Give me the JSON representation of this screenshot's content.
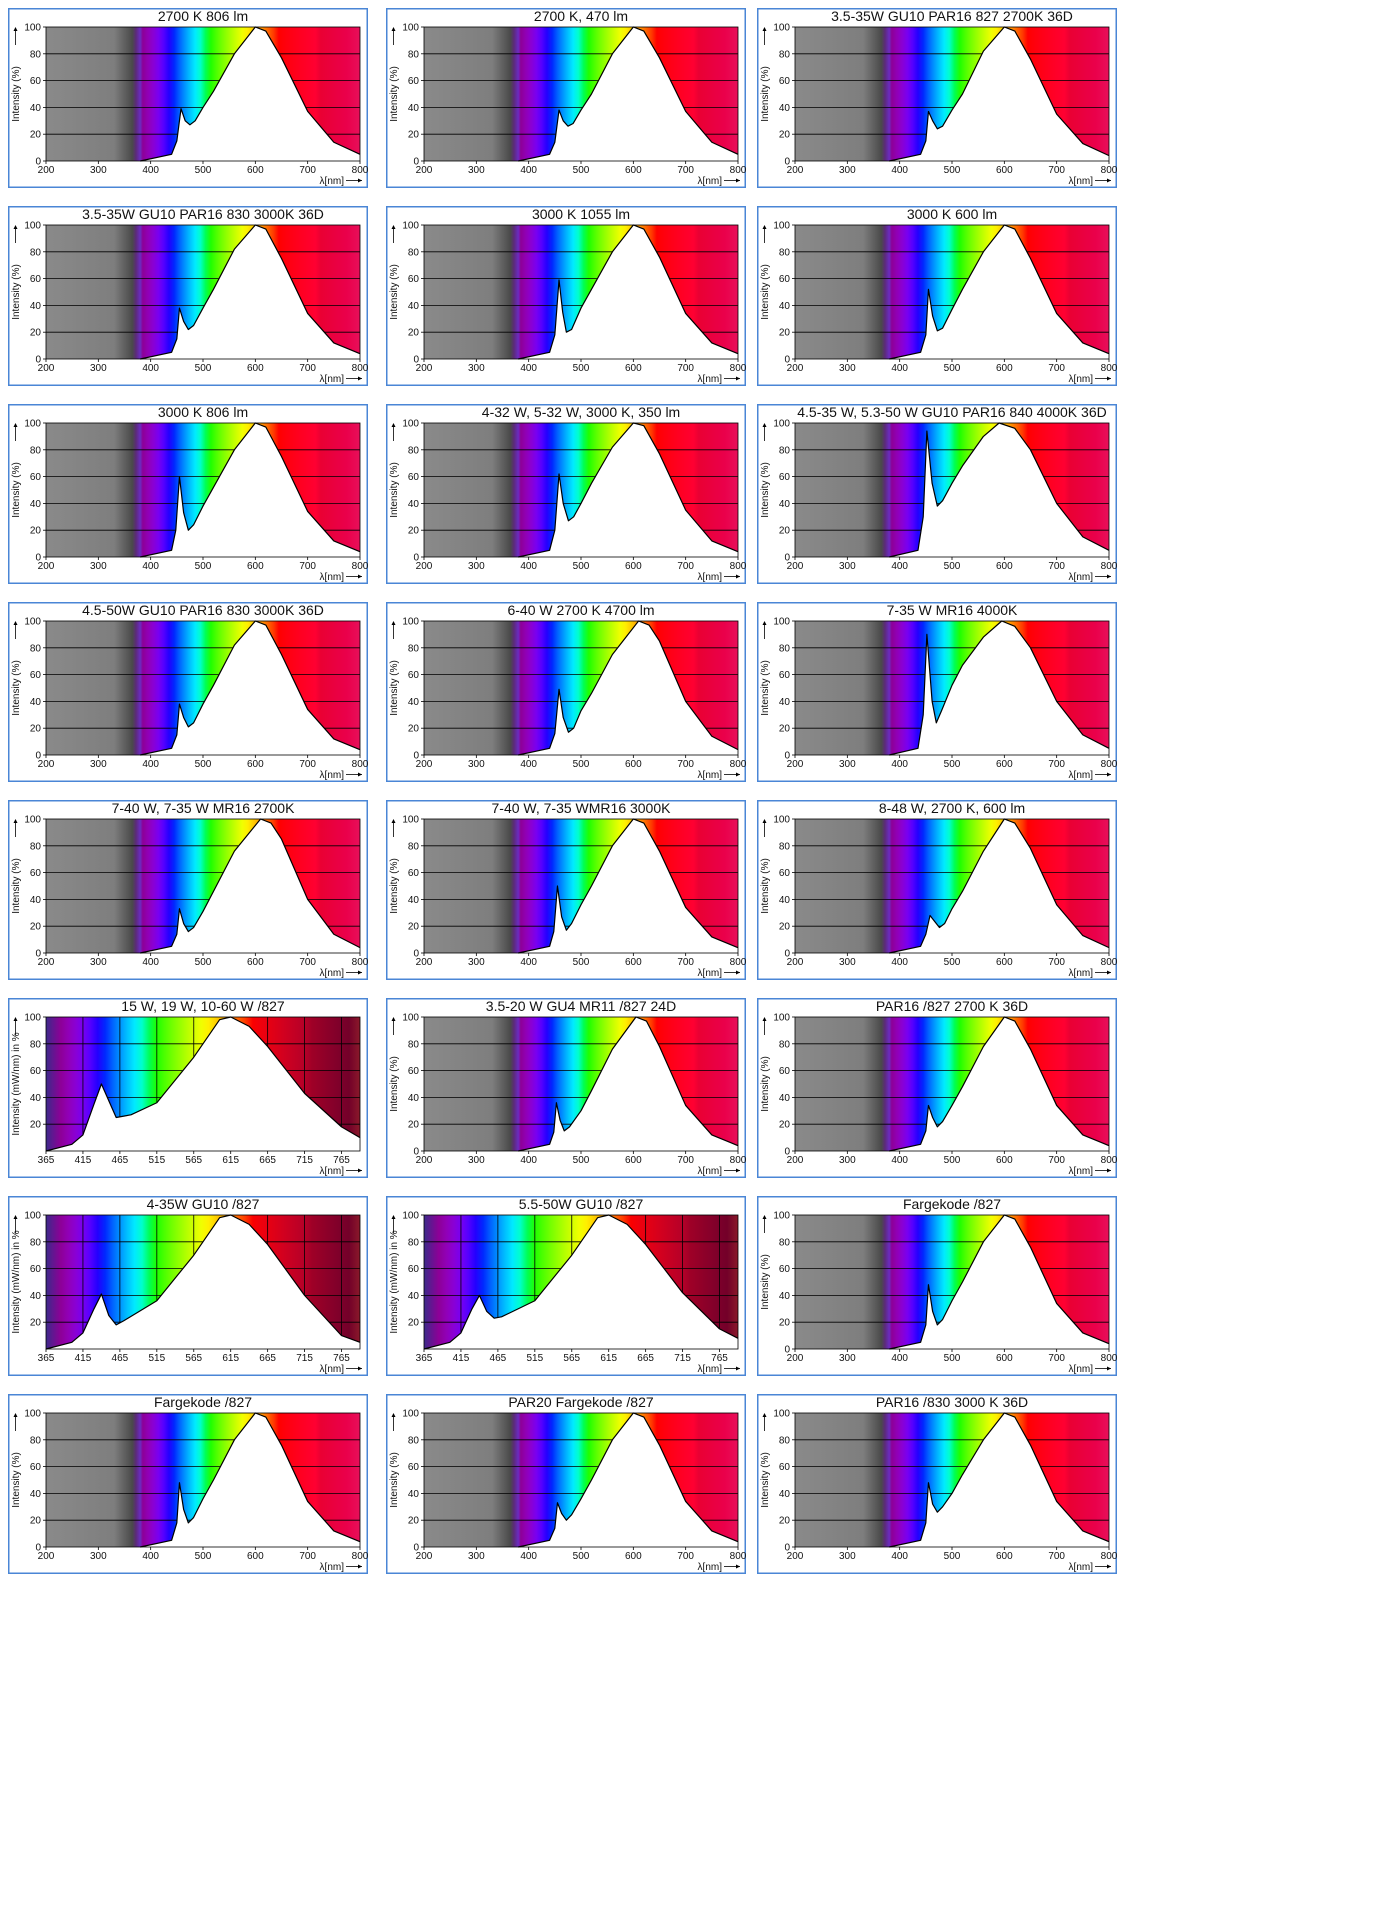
{
  "defaults": {
    "ylabel": "Intensity (%)",
    "xlabel": "λ[nm]",
    "xlim": [
      200,
      800
    ],
    "ylim": [
      0,
      100
    ],
    "xticks": [
      200,
      300,
      400,
      500,
      600,
      700,
      800
    ],
    "yticks": [
      0,
      20,
      40,
      60,
      80,
      100
    ],
    "background": "grey-to-visible-spectrum"
  },
  "alt_axis": {
    "ylabel": "Intensity (mW/nm) in %",
    "xlabel": "λ[nm]",
    "xlim": [
      365,
      790
    ],
    "ylim": [
      0,
      100
    ],
    "xticks": [
      365,
      415,
      465,
      515,
      565,
      615,
      665,
      715,
      765
    ],
    "yticks": [
      20,
      40,
      60,
      80,
      100
    ],
    "background": "spectrum-with-grid"
  },
  "colors": {
    "frame_border": "#4a86d6",
    "curve": "#000000",
    "grid": "#000000",
    "uv_grey": "#6e6e6e"
  },
  "chart_data": [
    {
      "type": "area",
      "title": "2700 K 806 lm",
      "x": [
        380,
        440,
        450,
        458,
        466,
        475,
        485,
        500,
        520,
        560,
        600,
        620,
        650,
        700,
        750,
        800
      ],
      "y": [
        0,
        5,
        15,
        39,
        30,
        27,
        30,
        40,
        52,
        80,
        100,
        97,
        77,
        37,
        14,
        5
      ]
    },
    {
      "type": "area",
      "title": "2700 K, 470 lm",
      "x": [
        380,
        440,
        450,
        458,
        466,
        475,
        485,
        500,
        520,
        560,
        600,
        620,
        650,
        700,
        750,
        800
      ],
      "y": [
        0,
        5,
        14,
        38,
        30,
        26,
        28,
        38,
        50,
        80,
        100,
        97,
        77,
        37,
        14,
        5
      ]
    },
    {
      "type": "area",
      "title": "3.5-35W GU10 PAR16 827 2700K 36D",
      "x": [
        380,
        440,
        450,
        455,
        463,
        472,
        482,
        500,
        520,
        560,
        600,
        620,
        650,
        700,
        750,
        800
      ],
      "y": [
        0,
        5,
        15,
        37,
        30,
        24,
        26,
        38,
        50,
        82,
        100,
        97,
        76,
        35,
        13,
        4
      ]
    },
    {
      "type": "area",
      "title": "3.5-35W GU10 PAR16 830 3000K 36D",
      "x": [
        380,
        440,
        450,
        455,
        463,
        472,
        482,
        500,
        520,
        560,
        600,
        620,
        650,
        700,
        750,
        800
      ],
      "y": [
        0,
        5,
        15,
        38,
        28,
        22,
        25,
        38,
        52,
        82,
        100,
        97,
        75,
        34,
        12,
        4
      ]
    },
    {
      "type": "area",
      "title": "3000 K 1055 lm",
      "x": [
        380,
        440,
        450,
        458,
        465,
        472,
        482,
        500,
        520,
        560,
        600,
        620,
        650,
        700,
        750,
        800
      ],
      "y": [
        0,
        5,
        18,
        59,
        35,
        20,
        22,
        38,
        52,
        80,
        100,
        97,
        76,
        34,
        12,
        4
      ]
    },
    {
      "type": "area",
      "title": "3000 K 600 lm",
      "x": [
        380,
        440,
        450,
        455,
        463,
        472,
        482,
        500,
        520,
        560,
        600,
        620,
        650,
        700,
        750,
        800
      ],
      "y": [
        0,
        5,
        18,
        52,
        32,
        21,
        23,
        37,
        52,
        80,
        100,
        97,
        75,
        34,
        12,
        4
      ]
    },
    {
      "type": "area",
      "title": "3000 K 806 lm",
      "x": [
        380,
        440,
        448,
        455,
        463,
        472,
        482,
        500,
        520,
        560,
        600,
        620,
        650,
        700,
        750,
        800
      ],
      "y": [
        0,
        5,
        20,
        60,
        33,
        20,
        24,
        38,
        52,
        80,
        100,
        97,
        75,
        34,
        12,
        4
      ]
    },
    {
      "type": "area",
      "title": "4-32 W, 5-32 W, 3000 K, 350 lm",
      "x": [
        380,
        440,
        450,
        458,
        466,
        476,
        486,
        500,
        520,
        560,
        600,
        620,
        650,
        700,
        750,
        800
      ],
      "y": [
        0,
        5,
        20,
        62,
        40,
        27,
        30,
        40,
        55,
        82,
        100,
        98,
        77,
        35,
        12,
        4
      ]
    },
    {
      "type": "area",
      "title": "4.5-35 W, 5.3-50 W GU10 PAR16 840 4000K 36D",
      "x": [
        380,
        435,
        445,
        452,
        462,
        472,
        482,
        500,
        520,
        560,
        590,
        620,
        650,
        700,
        750,
        800
      ],
      "y": [
        0,
        5,
        30,
        94,
        55,
        38,
        42,
        55,
        68,
        90,
        100,
        96,
        80,
        40,
        15,
        5
      ]
    },
    {
      "type": "area",
      "title": "4.5-50W GU10 PAR16 830 3000K 36D",
      "x": [
        380,
        440,
        450,
        455,
        463,
        472,
        482,
        500,
        520,
        560,
        600,
        620,
        650,
        700,
        750,
        800
      ],
      "y": [
        0,
        5,
        15,
        38,
        28,
        21,
        24,
        38,
        52,
        82,
        100,
        97,
        75,
        34,
        12,
        4
      ]
    },
    {
      "type": "area",
      "title": "6-40 W 2700 K 4700 lm",
      "x": [
        380,
        440,
        450,
        458,
        466,
        476,
        486,
        500,
        520,
        560,
        610,
        630,
        650,
        700,
        750,
        800
      ],
      "y": [
        0,
        5,
        16,
        49,
        28,
        17,
        20,
        33,
        46,
        75,
        100,
        97,
        85,
        40,
        14,
        4
      ]
    },
    {
      "type": "area",
      "title": "7-35 W MR16 4000K",
      "x": [
        380,
        435,
        445,
        452,
        462,
        470,
        480,
        500,
        520,
        560,
        595,
        620,
        650,
        700,
        750,
        800
      ],
      "y": [
        0,
        5,
        30,
        90,
        40,
        24,
        33,
        52,
        67,
        88,
        100,
        96,
        80,
        40,
        15,
        5
      ]
    },
    {
      "type": "area",
      "title": "7-40 W, 7-35 W MR16 2700K",
      "x": [
        380,
        440,
        450,
        455,
        463,
        472,
        482,
        500,
        520,
        560,
        610,
        630,
        650,
        700,
        750,
        800
      ],
      "y": [
        0,
        5,
        14,
        33,
        22,
        16,
        19,
        31,
        46,
        76,
        100,
        97,
        85,
        40,
        14,
        4
      ]
    },
    {
      "type": "area",
      "title": "7-40 W, 7-35 WMR16 3000K",
      "x": [
        380,
        440,
        448,
        455,
        463,
        472,
        482,
        500,
        520,
        560,
        600,
        620,
        650,
        700,
        750,
        800
      ],
      "y": [
        0,
        5,
        16,
        50,
        27,
        17,
        22,
        36,
        50,
        80,
        100,
        97,
        76,
        34,
        12,
        4
      ]
    },
    {
      "type": "area",
      "title": "8-48 W, 2700 K, 600 lm",
      "x": [
        380,
        440,
        450,
        458,
        466,
        476,
        486,
        500,
        520,
        560,
        600,
        620,
        650,
        700,
        750,
        800
      ],
      "y": [
        0,
        5,
        14,
        28,
        24,
        19,
        22,
        33,
        46,
        76,
        100,
        97,
        78,
        36,
        13,
        4
      ]
    },
    {
      "type": "area",
      "title": "15 W, 19 W, 10-60 W /827",
      "x": [
        365,
        400,
        415,
        430,
        440,
        448,
        460,
        480,
        515,
        565,
        600,
        615,
        640,
        665,
        715,
        765,
        790
      ],
      "y": [
        0,
        5,
        12,
        35,
        50,
        40,
        25,
        27,
        36,
        70,
        98,
        100,
        93,
        78,
        43,
        18,
        10
      ]
    },
    {
      "type": "area",
      "title": "3.5-20 W GU4 MR11 /827 24D",
      "x": [
        380,
        440,
        448,
        453,
        460,
        468,
        478,
        500,
        520,
        560,
        605,
        625,
        650,
        700,
        750,
        800
      ],
      "y": [
        0,
        5,
        14,
        36,
        23,
        15,
        18,
        30,
        45,
        76,
        100,
        97,
        78,
        34,
        12,
        4
      ]
    },
    {
      "type": "area",
      "title": "PAR16 /827 2700 K 36D",
      "x": [
        380,
        440,
        450,
        455,
        463,
        472,
        482,
        500,
        520,
        560,
        600,
        620,
        650,
        700,
        750,
        800
      ],
      "y": [
        0,
        5,
        15,
        34,
        25,
        18,
        22,
        34,
        48,
        78,
        100,
        97,
        76,
        34,
        12,
        4
      ]
    },
    {
      "type": "area",
      "title": "4-35W GU10 /827",
      "x": [
        365,
        400,
        415,
        430,
        440,
        450,
        460,
        470,
        515,
        565,
        600,
        615,
        640,
        665,
        715,
        765,
        790
      ],
      "y": [
        0,
        5,
        12,
        30,
        41,
        25,
        18,
        21,
        36,
        70,
        98,
        100,
        93,
        78,
        40,
        10,
        5
      ]
    },
    {
      "type": "area",
      "title": "5.5-50W GU10 /827",
      "x": [
        365,
        400,
        415,
        430,
        440,
        450,
        460,
        470,
        515,
        565,
        600,
        615,
        640,
        665,
        715,
        765,
        790
      ],
      "y": [
        0,
        5,
        12,
        30,
        40,
        28,
        23,
        24,
        36,
        70,
        98,
        100,
        93,
        78,
        42,
        15,
        8
      ]
    },
    {
      "type": "area",
      "title": "Fargekode /827",
      "x": [
        380,
        440,
        450,
        455,
        463,
        472,
        482,
        500,
        520,
        560,
        600,
        620,
        650,
        700,
        750,
        800
      ],
      "y": [
        0,
        5,
        18,
        48,
        28,
        18,
        22,
        36,
        50,
        80,
        100,
        97,
        76,
        34,
        12,
        4
      ]
    },
    {
      "type": "area",
      "title": "Fargekode /827",
      "x": [
        380,
        440,
        450,
        455,
        463,
        472,
        482,
        500,
        520,
        560,
        600,
        620,
        650,
        700,
        750,
        800
      ],
      "y": [
        0,
        5,
        18,
        48,
        28,
        18,
        22,
        36,
        50,
        80,
        100,
        97,
        76,
        34,
        12,
        4
      ]
    },
    {
      "type": "area",
      "title": "PAR20 Fargekode /827",
      "x": [
        380,
        440,
        450,
        455,
        463,
        472,
        482,
        500,
        520,
        560,
        600,
        620,
        650,
        700,
        750,
        800
      ],
      "y": [
        0,
        5,
        14,
        33,
        25,
        20,
        24,
        36,
        50,
        80,
        100,
        97,
        76,
        34,
        12,
        4
      ]
    },
    {
      "type": "area",
      "title": "PAR16 /830 3000 K 36D",
      "x": [
        380,
        440,
        450,
        455,
        463,
        472,
        482,
        500,
        520,
        560,
        600,
        620,
        650,
        700,
        750,
        800
      ],
      "y": [
        0,
        5,
        18,
        48,
        32,
        26,
        30,
        40,
        54,
        80,
        100,
        97,
        76,
        34,
        12,
        4
      ]
    }
  ]
}
